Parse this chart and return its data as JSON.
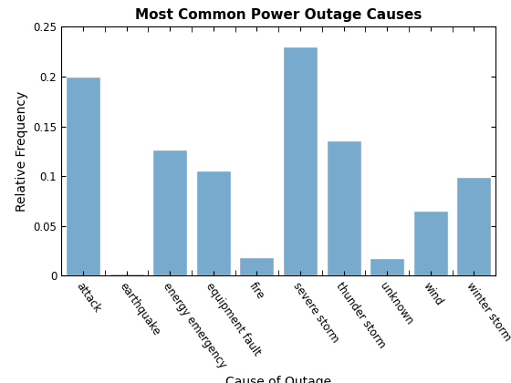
{
  "title": "Most Common Power Outage Causes",
  "xlabel": "Cause of Outage",
  "ylabel": "Relative Frequency",
  "categories": [
    "attack",
    "earthquake",
    "energy emergency",
    "equipment fault",
    "fire",
    "severe storm",
    "thunder storm",
    "unknown",
    "wind",
    "winter storm"
  ],
  "values": [
    0.2,
    0.002,
    0.127,
    0.106,
    0.019,
    0.23,
    0.136,
    0.018,
    0.065,
    0.099
  ],
  "bar_color": "#77AACC",
  "bar_edge_color": "#ffffff",
  "ylim": [
    0,
    0.25
  ],
  "yticks": [
    0,
    0.05,
    0.1,
    0.15,
    0.2,
    0.25
  ],
  "figsize": [
    5.6,
    4.2
  ],
  "dpi": 100,
  "title_fontsize": 11,
  "label_fontsize": 10,
  "tick_label_fontsize": 8.5,
  "background_color": "#ffffff"
}
